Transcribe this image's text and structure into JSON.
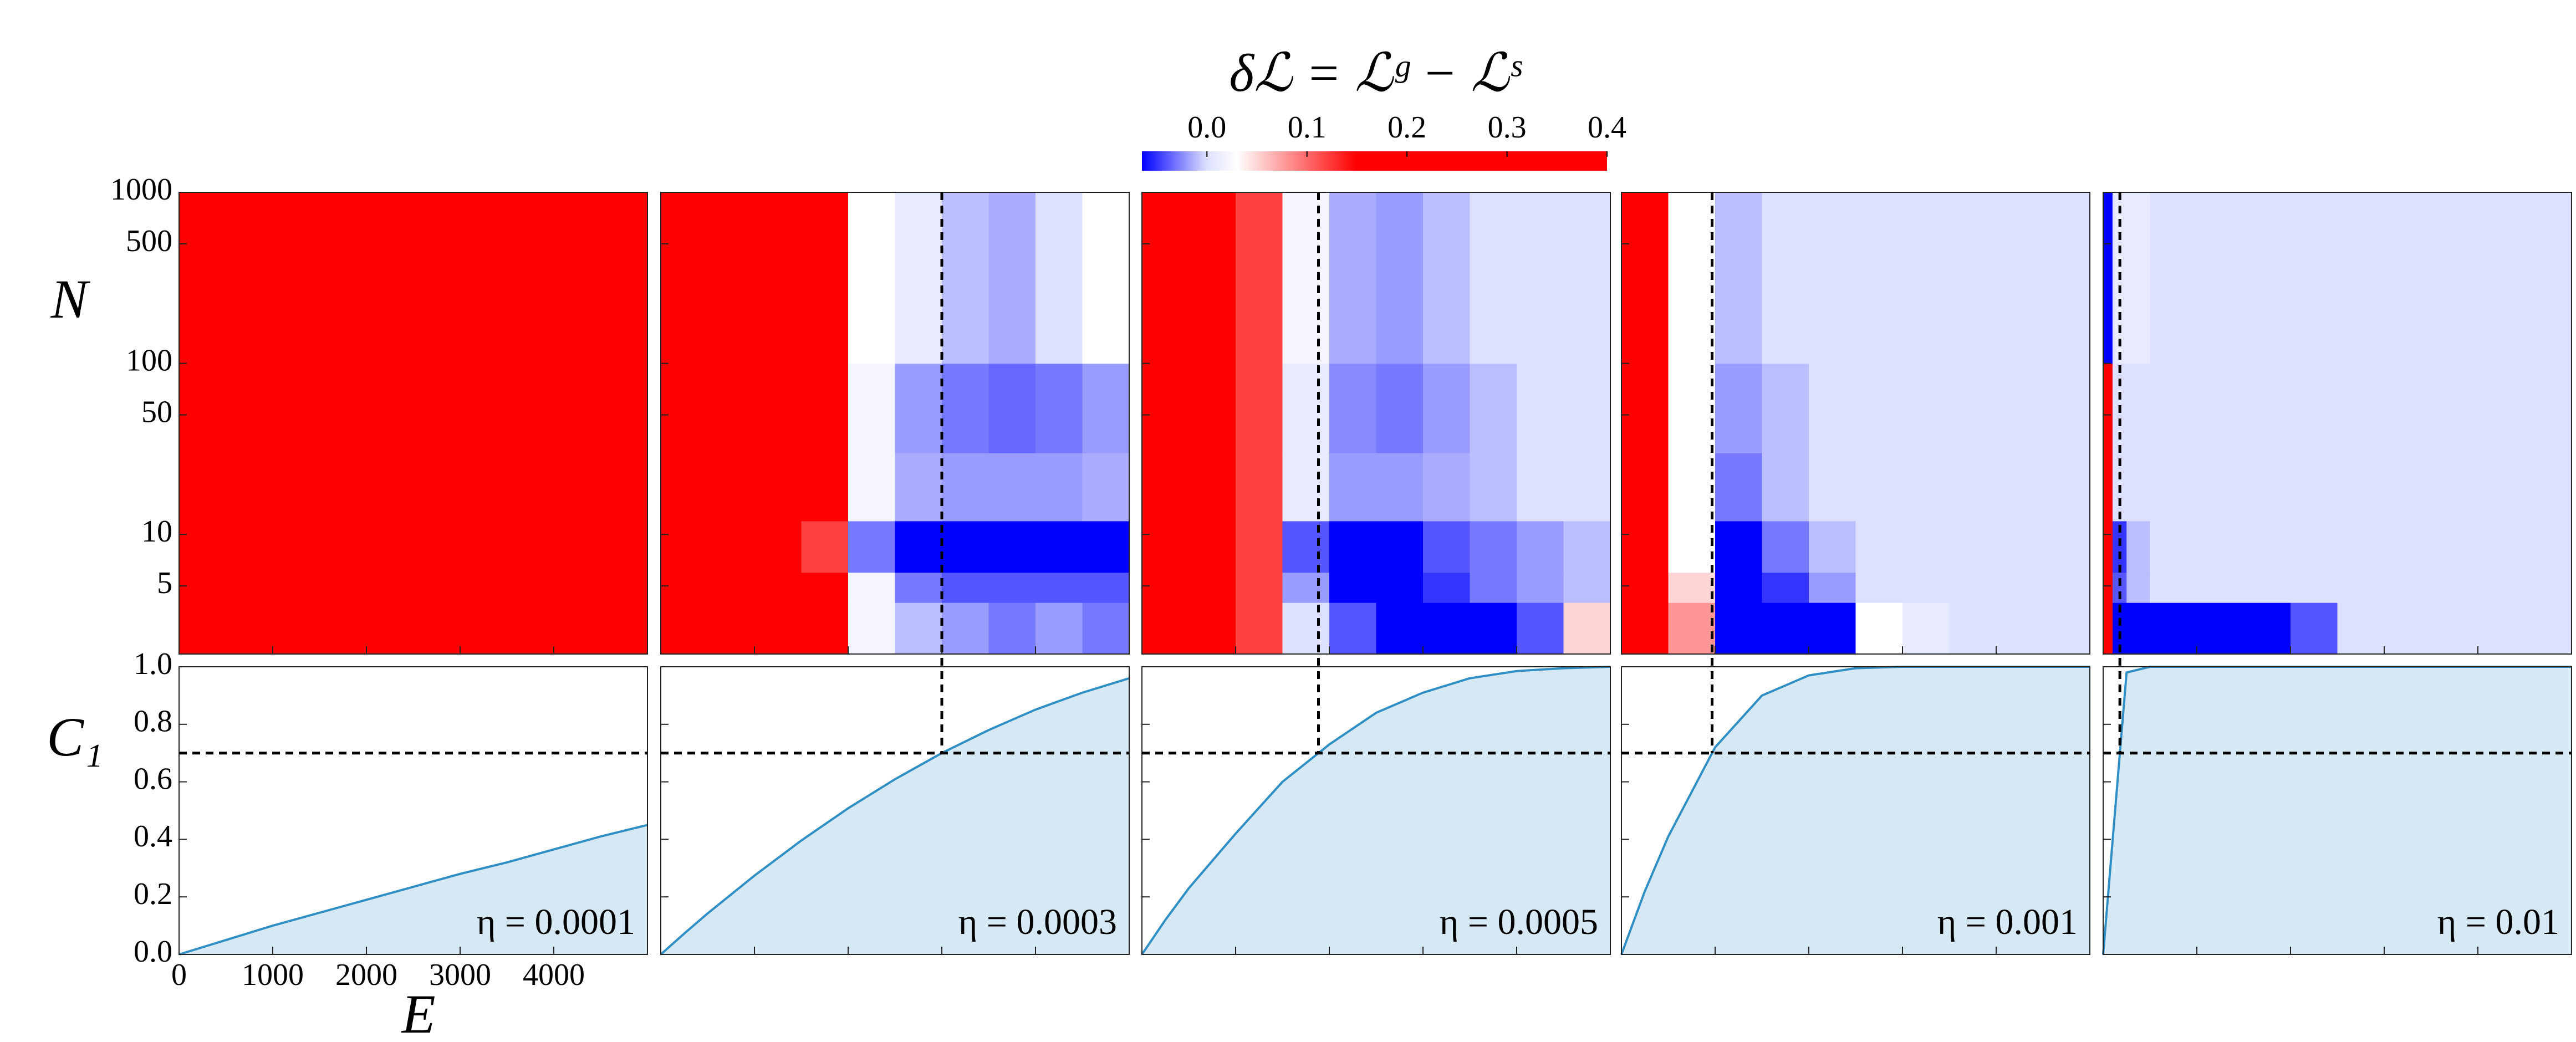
{
  "chart_data": {
    "type": "heatmap",
    "colorbar_label": "δℒ = ℒᵍ − ℒˢ",
    "clim": [
      -0.065,
      0.4
    ],
    "cticks": [
      {
        "value": 0,
        "label": "0.0"
      },
      0.1,
      0.2,
      0.3,
      0.4
    ],
    "colormap": [
      {
        "value": -0.065,
        "color": "#0000ff"
      },
      {
        "value": 0.0,
        "color": "#dde0ff"
      },
      {
        "value": 0.03,
        "color": "#ffffff"
      },
      {
        "value": 0.15,
        "color": "#ff0000"
      },
      {
        "value": 0.4,
        "color": "#ff0000"
      }
    ],
    "xlabel": "E",
    "ylabel": "N",
    "c1_label": "C₁",
    "xlim": [
      0,
      5000
    ],
    "xticks": [
      0,
      1000,
      2000,
      3000,
      4000
    ],
    "ylim": [
      2,
      1000
    ],
    "ylog": true,
    "yticks": [
      5,
      10,
      50,
      100,
      500,
      1000
    ],
    "y2lim": [
      0,
      1
    ],
    "y2ticks": [
      {
        "value": 0,
        "label": "0.0"
      },
      0.2,
      0.4,
      0.6,
      0.8,
      {
        "value": 1,
        "label": "1.0"
      }
    ],
    "threshold": 0.7,
    "curve_color": "#2f8fc4",
    "fill_color": "#d5e8f3",
    "e_bins": [
      0,
      100,
      250,
      500,
      1000,
      1500,
      2000,
      2500,
      3000,
      3500,
      4000,
      4500,
      5000
    ],
    "n_bins": [
      2,
      4,
      6,
      12,
      30,
      100,
      1000
    ],
    "x": [
      0,
      250,
      500,
      1000,
      1500,
      2000,
      2500,
      3000,
      3500,
      4000,
      4500,
      5000
    ],
    "panels": [
      {
        "annotation": "η = 0.0001",
        "values": [
          0,
          0.025,
          0.05,
          0.1,
          0.145,
          0.19,
          0.235,
          0.28,
          0.32,
          0.365,
          0.41,
          0.45
        ],
        "heatmap": [
          [
            0.4,
            0.4,
            0.4,
            0.4,
            0.4,
            0.4,
            0.4,
            0.4,
            0.4,
            0.4,
            0.4,
            0.4
          ],
          [
            0.4,
            0.4,
            0.4,
            0.4,
            0.4,
            0.4,
            0.4,
            0.4,
            0.4,
            0.4,
            0.4,
            0.4
          ],
          [
            0.4,
            0.4,
            0.4,
            0.4,
            0.4,
            0.4,
            0.4,
            0.4,
            0.4,
            0.4,
            0.4,
            0.4
          ],
          [
            0.4,
            0.4,
            0.4,
            0.4,
            0.4,
            0.4,
            0.4,
            0.4,
            0.4,
            0.4,
            0.4,
            0.4
          ],
          [
            0.4,
            0.4,
            0.4,
            0.4,
            0.4,
            0.4,
            0.4,
            0.4,
            0.4,
            0.4,
            0.4,
            0.4
          ],
          [
            0.4,
            0.4,
            0.4,
            0.4,
            0.4,
            0.4,
            0.4,
            0.4,
            0.4,
            0.4,
            0.4,
            0.4
          ]
        ]
      },
      {
        "annotation": "η = 0.0003",
        "values": [
          0,
          0.0725,
          0.1425,
          0.274,
          0.396,
          0.508,
          0.609,
          0.7,
          0.78,
          0.851,
          0.91,
          0.96
        ],
        "heatmap": [
          [
            0.4,
            0.4,
            0.4,
            0.4,
            0.4,
            0.15,
            0.02,
            -0.01,
            -0.02,
            -0.03,
            -0.02,
            -0.03
          ],
          [
            0.4,
            0.4,
            0.4,
            0.4,
            0.4,
            0.15,
            0.02,
            -0.03,
            -0.04,
            -0.04,
            -0.04,
            -0.04
          ],
          [
            0.4,
            0.4,
            0.4,
            0.4,
            0.4,
            0.12,
            -0.03,
            -0.065,
            -0.065,
            -0.065,
            -0.065,
            -0.065
          ],
          [
            0.4,
            0.4,
            0.4,
            0.4,
            0.4,
            0.15,
            0.02,
            -0.015,
            -0.02,
            -0.02,
            -0.02,
            -0.015
          ],
          [
            0.4,
            0.4,
            0.4,
            0.4,
            0.4,
            0.15,
            0.02,
            -0.02,
            -0.03,
            -0.035,
            -0.03,
            -0.02
          ],
          [
            0.4,
            0.4,
            0.4,
            0.4,
            0.4,
            0.15,
            0.03,
            0.01,
            -0.01,
            -0.015,
            0,
            0.03
          ]
        ]
      },
      {
        "annotation": "η = 0.0005",
        "values": [
          0,
          0.12,
          0.23,
          0.42,
          0.6,
          0.73,
          0.84,
          0.91,
          0.96,
          0.985,
          0.995,
          1
        ],
        "heatmap": [
          [
            0.4,
            0.4,
            0.4,
            0.4,
            0.12,
            0,
            -0.04,
            -0.065,
            -0.065,
            -0.065,
            -0.04,
            0.05
          ],
          [
            0.4,
            0.4,
            0.4,
            0.4,
            0.12,
            -0.02,
            -0.065,
            -0.065,
            -0.05,
            -0.03,
            -0.02,
            -0.01
          ],
          [
            0.4,
            0.4,
            0.4,
            0.4,
            0.12,
            -0.04,
            -0.065,
            -0.065,
            -0.04,
            -0.03,
            -0.02,
            -0.01
          ],
          [
            0.4,
            0.4,
            0.4,
            0.4,
            0.12,
            0.01,
            -0.02,
            -0.02,
            -0.015,
            -0.01,
            0,
            0
          ],
          [
            0.4,
            0.4,
            0.4,
            0.4,
            0.12,
            0.01,
            -0.025,
            -0.03,
            -0.02,
            -0.01,
            0,
            0
          ],
          [
            0.4,
            0.4,
            0.4,
            0.4,
            0.12,
            0.02,
            -0.015,
            -0.02,
            -0.01,
            0,
            0,
            0
          ]
        ]
      },
      {
        "annotation": "η = 0.001",
        "values": [
          0,
          0.22,
          0.41,
          0.72,
          0.9,
          0.97,
          0.995,
          1,
          1,
          1,
          1,
          1
        ],
        "heatmap": [
          [
            0.4,
            0.4,
            0.4,
            0.08,
            -0.065,
            -0.065,
            -0.065,
            0.03,
            0.01,
            0,
            0,
            0
          ],
          [
            0.4,
            0.4,
            0.4,
            0.05,
            -0.065,
            -0.05,
            -0.02,
            0,
            0,
            0,
            0,
            0
          ],
          [
            0.4,
            0.4,
            0.4,
            0.03,
            -0.065,
            -0.03,
            -0.01,
            0,
            0,
            0,
            0,
            0
          ],
          [
            0.4,
            0.4,
            0.4,
            0.03,
            -0.03,
            -0.01,
            0,
            0,
            0,
            0,
            0,
            0
          ],
          [
            0.4,
            0.4,
            0.4,
            0.03,
            -0.02,
            -0.01,
            0,
            0,
            0,
            0,
            0,
            0
          ],
          [
            0.4,
            0.4,
            0.4,
            0.03,
            -0.01,
            0,
            0,
            0,
            0,
            0,
            0,
            0
          ]
        ]
      },
      {
        "annotation": "η = 0.01",
        "values": [
          0,
          0.98,
          1,
          1,
          1,
          1,
          1,
          1,
          1,
          1,
          1,
          1
        ],
        "heatmap": [
          [
            0.4,
            -0.065,
            -0.065,
            -0.065,
            -0.065,
            -0.065,
            -0.04,
            0,
            0,
            0,
            0,
            0
          ],
          [
            0.4,
            -0.04,
            -0.01,
            0,
            0,
            0,
            0,
            0,
            0,
            0,
            0,
            0
          ],
          [
            0.4,
            -0.05,
            -0.01,
            0,
            0,
            0,
            0,
            0,
            0,
            0,
            0,
            0
          ],
          [
            0.4,
            0,
            0,
            0,
            0,
            0,
            0,
            0,
            0,
            0,
            0,
            0
          ],
          [
            0.4,
            0,
            0,
            0,
            0,
            0,
            0,
            0,
            0,
            0,
            0,
            0
          ],
          [
            -0.065,
            0.01,
            0.01,
            0,
            0,
            0,
            0,
            0,
            0,
            0,
            0,
            0
          ]
        ]
      }
    ]
  }
}
